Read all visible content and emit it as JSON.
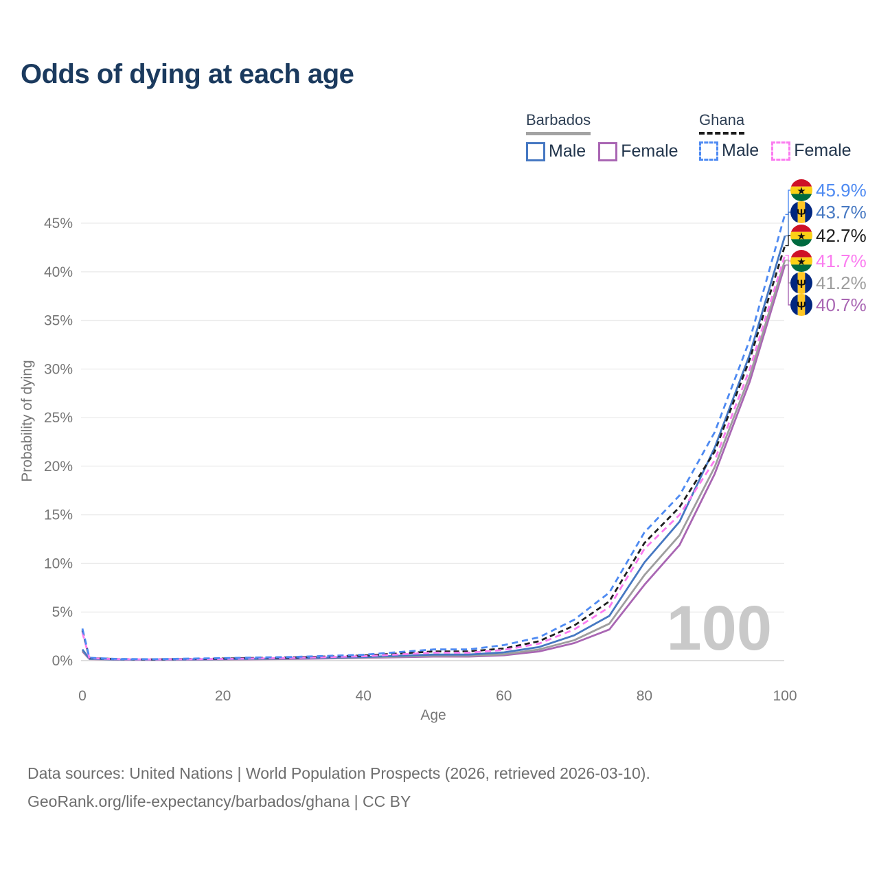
{
  "watermark": "100",
  "legend": {
    "groups": [
      {
        "name": "Barbados",
        "line_style": "solid",
        "underline_color": "#a3a3a3",
        "items": [
          {
            "label": "Male",
            "color": "#4678c2"
          },
          {
            "label": "Female",
            "color": "#a966b3"
          }
        ]
      },
      {
        "name": "Ghana",
        "line_style": "dashed",
        "underline_color": "#1c1c1c",
        "items": [
          {
            "label": "Male",
            "color": "#4e8af2"
          },
          {
            "label": "Female",
            "color": "#fb7cf0"
          }
        ]
      }
    ]
  },
  "footer": {
    "line1": "Data sources: United Nations | World Population Prospects (2026, retrieved 2026-03-10).",
    "line2": "GeoRank.org/life-expectancy/barbados/ghana | CC BY"
  },
  "chart_data": {
    "type": "line",
    "title": "Odds of dying at each age",
    "xlabel": "Age",
    "ylabel": "Probability of dying",
    "xlim": [
      0,
      100
    ],
    "ylim": [
      0,
      47
    ],
    "grid": "horizontal",
    "legend_position": "top-right",
    "x_ticks": [
      0,
      20,
      40,
      60,
      80,
      100
    ],
    "y_ticks": [
      0,
      5,
      10,
      15,
      20,
      25,
      30,
      35,
      40,
      45
    ],
    "y_tick_labels": [
      "0%",
      "5%",
      "10%",
      "15%",
      "20%",
      "25%",
      "30%",
      "35%",
      "40%",
      "45%"
    ],
    "x": [
      0,
      1,
      5,
      10,
      20,
      30,
      40,
      50,
      55,
      60,
      65,
      70,
      75,
      80,
      85,
      90,
      95,
      100
    ],
    "series": [
      {
        "name": "Barbados Female",
        "country": "barbados",
        "sex": "female",
        "dash": false,
        "color": "#a966b3",
        "values": [
          0.95,
          0.16,
          0.1,
          0.08,
          0.12,
          0.18,
          0.28,
          0.42,
          0.42,
          0.55,
          0.95,
          1.8,
          3.2,
          7.8,
          11.9,
          19.2,
          28.7,
          40.7
        ]
      },
      {
        "name": "Barbados Both sexes",
        "country": "barbados",
        "sex": "both",
        "dash": false,
        "color": "#9e9e9e",
        "values": [
          1.05,
          0.18,
          0.11,
          0.09,
          0.14,
          0.21,
          0.32,
          0.5,
          0.5,
          0.65,
          1.15,
          2.1,
          3.8,
          8.8,
          12.9,
          19.9,
          29.3,
          41.2
        ]
      },
      {
        "name": "Barbados Male",
        "country": "barbados",
        "sex": "male",
        "dash": false,
        "color": "#4678c2",
        "values": [
          1.15,
          0.2,
          0.12,
          0.1,
          0.16,
          0.24,
          0.37,
          0.62,
          0.62,
          0.85,
          1.4,
          2.6,
          4.6,
          10.1,
          14.3,
          21.9,
          31.5,
          43.7
        ]
      },
      {
        "name": "Ghana Both sexes",
        "country": "ghana",
        "sex": "both",
        "dash": true,
        "color": "#1f1f1f",
        "values": [
          3.1,
          0.27,
          0.16,
          0.13,
          0.22,
          0.33,
          0.52,
          0.95,
          0.95,
          1.25,
          2.0,
          3.6,
          6.1,
          12.1,
          15.8,
          21.5,
          31.0,
          42.7
        ]
      },
      {
        "name": "Ghana Female",
        "country": "ghana",
        "sex": "female",
        "dash": true,
        "color": "#fb7cf0",
        "values": [
          2.9,
          0.25,
          0.15,
          0.12,
          0.18,
          0.28,
          0.45,
          0.82,
          0.82,
          1.1,
          1.75,
          3.2,
          5.5,
          11.5,
          15.0,
          20.6,
          30.0,
          41.7
        ]
      },
      {
        "name": "Ghana Male",
        "country": "ghana",
        "sex": "male",
        "dash": true,
        "color": "#4e8af2",
        "values": [
          3.3,
          0.3,
          0.18,
          0.15,
          0.26,
          0.38,
          0.6,
          1.15,
          1.15,
          1.6,
          2.4,
          4.2,
          7.0,
          13.2,
          17.0,
          23.5,
          33.0,
          45.9
        ]
      }
    ],
    "end_labels": [
      {
        "flag": "ghana",
        "series": "Ghana Male",
        "value": "45.9%",
        "pct": 45.9,
        "color": "#4e8af2"
      },
      {
        "flag": "barbados",
        "series": "Barbados Male",
        "value": "43.7%",
        "pct": 43.7,
        "color": "#4678c2"
      },
      {
        "flag": "ghana",
        "series": "Ghana Both sexes",
        "value": "42.7%",
        "pct": 42.7,
        "color": "#1f1f1f"
      },
      {
        "flag": "ghana",
        "series": "Ghana Female",
        "value": "41.7%",
        "pct": 41.7,
        "color": "#fb7cf0"
      },
      {
        "flag": "barbados",
        "series": "Barbados Both sexes",
        "value": "41.2%",
        "pct": 41.2,
        "color": "#9e9e9e"
      },
      {
        "flag": "barbados",
        "series": "Barbados Female",
        "value": "40.7%",
        "pct": 40.7,
        "color": "#a966b3"
      }
    ],
    "flag_colors": {
      "ghana": {
        "top": "#CE1126",
        "middle": "#FCD116",
        "bottom": "#006B3F",
        "emblem": "★"
      },
      "barbados": {
        "side": "#00267F",
        "center": "#FFC726",
        "emblem": "Ψ"
      }
    }
  }
}
